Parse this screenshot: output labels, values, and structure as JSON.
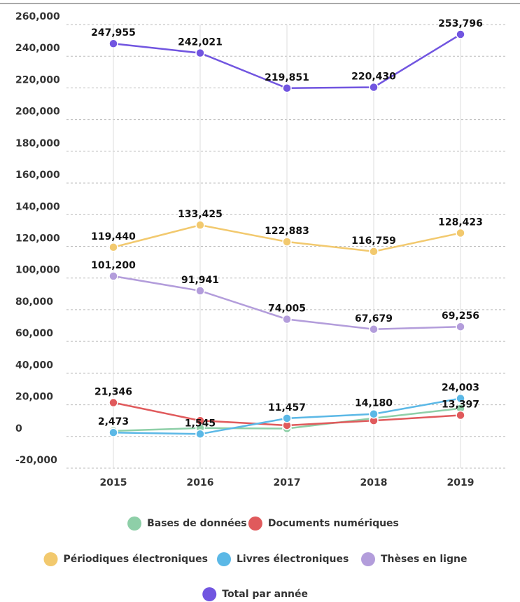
{
  "chart_data": {
    "type": "line",
    "categories": [
      "2015",
      "2016",
      "2017",
      "2018",
      "2019"
    ],
    "series": [
      {
        "name": "Bases de données",
        "color": "#8ecfa8",
        "values": [
          3500,
          5300,
          5000,
          11500,
          17700
        ],
        "value_labels": [
          null,
          null,
          null,
          null,
          null
        ]
      },
      {
        "name": "Documents numériques",
        "color": "#e05a5c",
        "values": [
          21346,
          10000,
          7000,
          10000,
          13397
        ],
        "value_labels": [
          "21,346",
          null,
          null,
          null,
          "13,397"
        ]
      },
      {
        "name": "Périodiques électroniques",
        "color": "#f2c96e",
        "values": [
          119440,
          133425,
          122883,
          116759,
          128423
        ],
        "value_labels": [
          "119,440",
          "133,425",
          "122,883",
          "116,759",
          "128,423"
        ]
      },
      {
        "name": "Livres électroniques",
        "color": "#5bb8e6",
        "values": [
          2473,
          1545,
          11457,
          14180,
          24003
        ],
        "value_labels": [
          "2,473",
          "1,545",
          "11,457",
          "14,180",
          "24,003"
        ]
      },
      {
        "name": "Thèses en ligne",
        "color": "#b39ddb",
        "values": [
          101200,
          91941,
          74005,
          67679,
          69256
        ],
        "value_labels": [
          "101,200",
          "91,941",
          "74,005",
          "67,679",
          "69,256"
        ]
      },
      {
        "name": "Total par année",
        "color": "#7155e0",
        "values": [
          247955,
          242021,
          219851,
          220430,
          253796
        ],
        "value_labels": [
          "247,955",
          "242,021",
          "219,851",
          "220,430",
          "253,796"
        ]
      }
    ],
    "ylim": [
      -20000,
      260000
    ],
    "yticks": [
      {
        "value": -20000,
        "label": "-20,000"
      },
      0,
      {
        "value": 20000,
        "label": "20,000"
      },
      {
        "value": 40000,
        "label": "40,000"
      },
      {
        "value": 60000,
        "label": "60,000"
      },
      {
        "value": 80000,
        "label": "80,000"
      },
      {
        "value": 100000,
        "label": "100,000"
      },
      {
        "value": 120000,
        "label": "120,000"
      },
      {
        "value": 140000,
        "label": "140,000"
      },
      {
        "value": 160000,
        "label": "160,000"
      },
      {
        "value": 180000,
        "label": "180,000"
      },
      {
        "value": 200000,
        "label": "200,000"
      },
      {
        "value": 220000,
        "label": "220,000"
      },
      {
        "value": 240000,
        "label": "240,000"
      },
      {
        "value": 260000,
        "label": "260,000"
      }
    ],
    "grid": true
  }
}
